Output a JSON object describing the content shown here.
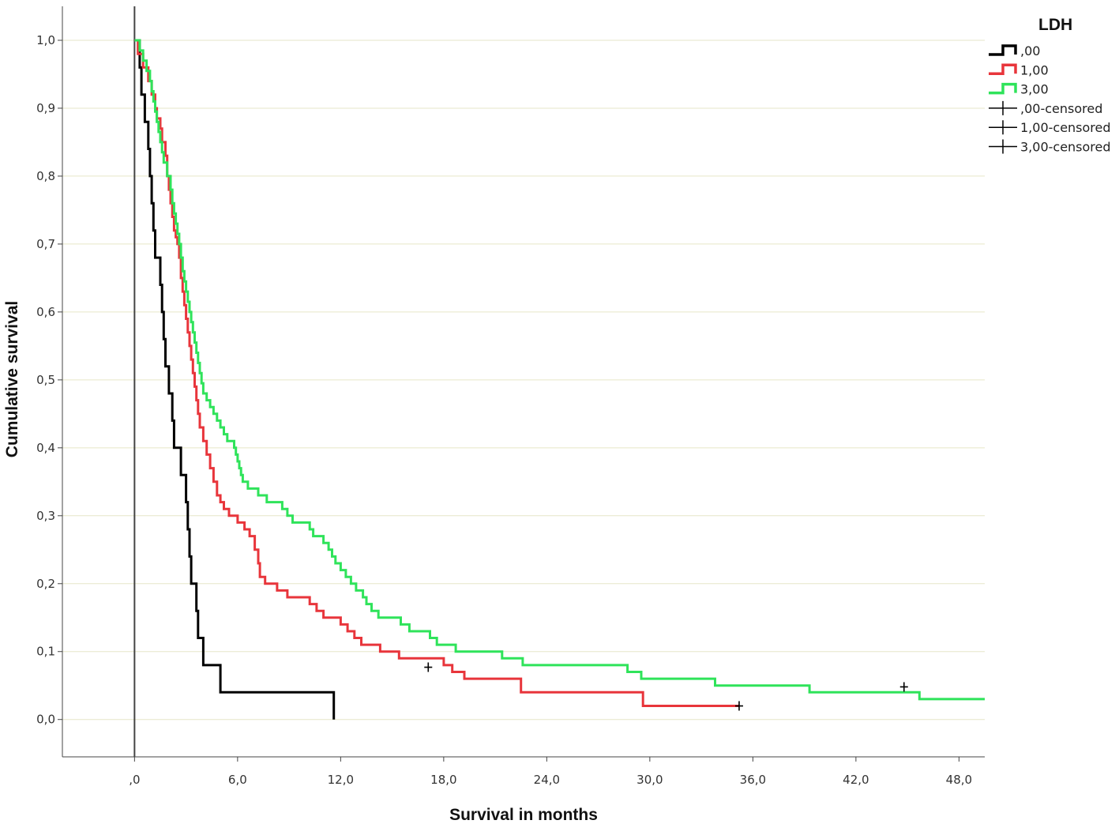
{
  "chart_data": {
    "type": "line",
    "xlabel": "Survival in months",
    "ylabel": "Cumulative survival",
    "xlim": [
      -4.2,
      49.5
    ],
    "ylim": [
      -0.055,
      1.05
    ],
    "xticks": [
      0,
      6,
      12,
      18,
      24,
      30,
      36,
      42,
      48
    ],
    "xtick_labels": [
      ",0",
      "6,0",
      "12,0",
      "18,0",
      "24,0",
      "30,0",
      "36,0",
      "42,0",
      "48,0"
    ],
    "yticks": [
      0,
      0.1,
      0.2,
      0.3,
      0.4,
      0.5,
      0.6,
      0.7,
      0.8,
      0.9,
      1.0
    ],
    "ytick_labels": [
      "0,0",
      "0,1",
      "0,2",
      "0,3",
      "0,4",
      "0,5",
      "0,6",
      "0,7",
      "0,8",
      "0,9",
      "1,0"
    ],
    "grid": "horizontal",
    "reference_line_x": 0,
    "legend": {
      "title": "LDH",
      "position": "top-right",
      "entries": [
        {
          "label": ",00",
          "kind": "line",
          "color": "#000000"
        },
        {
          "label": "1,00",
          "kind": "line",
          "color": "#e8353b"
        },
        {
          "label": "3,00",
          "kind": "line",
          "color": "#2fe35a"
        },
        {
          "label": ",00-censored",
          "kind": "censor-mark",
          "color": "#000000"
        },
        {
          "label": "1,00-censored",
          "kind": "censor-mark",
          "color": "#000000"
        },
        {
          "label": "3,00-censored",
          "kind": "censor-mark",
          "color": "#000000"
        }
      ]
    },
    "series": [
      {
        "name": ",00",
        "color": "#000000",
        "steps": [
          [
            0,
            1.0
          ],
          [
            0.3,
            0.96
          ],
          [
            0.4,
            0.92
          ],
          [
            0.6,
            0.88
          ],
          [
            0.8,
            0.84
          ],
          [
            0.9,
            0.8
          ],
          [
            1.0,
            0.76
          ],
          [
            1.1,
            0.72
          ],
          [
            1.2,
            0.68
          ],
          [
            1.5,
            0.64
          ],
          [
            1.6,
            0.6
          ],
          [
            1.7,
            0.56
          ],
          [
            1.8,
            0.52
          ],
          [
            2.0,
            0.48
          ],
          [
            2.2,
            0.44
          ],
          [
            2.3,
            0.4
          ],
          [
            2.7,
            0.36
          ],
          [
            3.0,
            0.32
          ],
          [
            3.1,
            0.28
          ],
          [
            3.2,
            0.24
          ],
          [
            3.3,
            0.2
          ],
          [
            3.6,
            0.16
          ],
          [
            3.7,
            0.12
          ],
          [
            4.0,
            0.08
          ],
          [
            5.0,
            0.04
          ],
          [
            11.6,
            0.0
          ]
        ],
        "end": 11.6,
        "censored": []
      },
      {
        "name": "1,00",
        "color": "#e8353b",
        "steps": [
          [
            0,
            1.0
          ],
          [
            0.2,
            0.98
          ],
          [
            0.5,
            0.96
          ],
          [
            0.8,
            0.94
          ],
          [
            1.0,
            0.92
          ],
          [
            1.2,
            0.9
          ],
          [
            1.3,
            0.885
          ],
          [
            1.5,
            0.87
          ],
          [
            1.6,
            0.85
          ],
          [
            1.8,
            0.83
          ],
          [
            1.9,
            0.8
          ],
          [
            2.0,
            0.78
          ],
          [
            2.1,
            0.76
          ],
          [
            2.2,
            0.74
          ],
          [
            2.3,
            0.72
          ],
          [
            2.4,
            0.71
          ],
          [
            2.5,
            0.7
          ],
          [
            2.6,
            0.68
          ],
          [
            2.7,
            0.65
          ],
          [
            2.8,
            0.63
          ],
          [
            2.9,
            0.61
          ],
          [
            3.0,
            0.59
          ],
          [
            3.1,
            0.57
          ],
          [
            3.2,
            0.55
          ],
          [
            3.3,
            0.53
          ],
          [
            3.4,
            0.51
          ],
          [
            3.5,
            0.49
          ],
          [
            3.6,
            0.47
          ],
          [
            3.7,
            0.45
          ],
          [
            3.8,
            0.43
          ],
          [
            4.0,
            0.41
          ],
          [
            4.2,
            0.39
          ],
          [
            4.4,
            0.37
          ],
          [
            4.6,
            0.35
          ],
          [
            4.8,
            0.33
          ],
          [
            5.0,
            0.32
          ],
          [
            5.2,
            0.31
          ],
          [
            5.5,
            0.3
          ],
          [
            6.0,
            0.29
          ],
          [
            6.4,
            0.28
          ],
          [
            6.7,
            0.27
          ],
          [
            7.0,
            0.25
          ],
          [
            7.2,
            0.23
          ],
          [
            7.3,
            0.21
          ],
          [
            7.6,
            0.2
          ],
          [
            8.3,
            0.19
          ],
          [
            8.9,
            0.18
          ],
          [
            10.2,
            0.17
          ],
          [
            10.6,
            0.16
          ],
          [
            11.0,
            0.15
          ],
          [
            12.0,
            0.14
          ],
          [
            12.4,
            0.13
          ],
          [
            12.8,
            0.12
          ],
          [
            13.2,
            0.11
          ],
          [
            14.3,
            0.1
          ],
          [
            15.4,
            0.09
          ],
          [
            18.0,
            0.08
          ],
          [
            18.5,
            0.07
          ],
          [
            19.2,
            0.06
          ],
          [
            22.5,
            0.04
          ],
          [
            29.6,
            0.02
          ]
        ],
        "end": 35.2,
        "censored": [
          [
            17.1,
            0.077
          ],
          [
            35.2,
            0.02
          ]
        ]
      },
      {
        "name": "3,00",
        "color": "#2fe35a",
        "steps": [
          [
            0,
            1.0
          ],
          [
            0.3,
            0.985
          ],
          [
            0.5,
            0.97
          ],
          [
            0.7,
            0.955
          ],
          [
            0.9,
            0.94
          ],
          [
            1.0,
            0.925
          ],
          [
            1.1,
            0.91
          ],
          [
            1.2,
            0.895
          ],
          [
            1.3,
            0.88
          ],
          [
            1.4,
            0.865
          ],
          [
            1.5,
            0.85
          ],
          [
            1.6,
            0.835
          ],
          [
            1.7,
            0.82
          ],
          [
            1.9,
            0.8
          ],
          [
            2.1,
            0.78
          ],
          [
            2.2,
            0.76
          ],
          [
            2.3,
            0.745
          ],
          [
            2.4,
            0.73
          ],
          [
            2.5,
            0.715
          ],
          [
            2.6,
            0.7
          ],
          [
            2.7,
            0.68
          ],
          [
            2.8,
            0.66
          ],
          [
            2.9,
            0.645
          ],
          [
            3.0,
            0.63
          ],
          [
            3.1,
            0.615
          ],
          [
            3.2,
            0.6
          ],
          [
            3.3,
            0.585
          ],
          [
            3.4,
            0.57
          ],
          [
            3.5,
            0.555
          ],
          [
            3.6,
            0.54
          ],
          [
            3.7,
            0.525
          ],
          [
            3.8,
            0.51
          ],
          [
            3.9,
            0.495
          ],
          [
            4.0,
            0.48
          ],
          [
            4.2,
            0.47
          ],
          [
            4.4,
            0.46
          ],
          [
            4.6,
            0.45
          ],
          [
            4.8,
            0.44
          ],
          [
            5.0,
            0.43
          ],
          [
            5.2,
            0.42
          ],
          [
            5.4,
            0.41
          ],
          [
            5.8,
            0.4
          ],
          [
            5.9,
            0.39
          ],
          [
            6.0,
            0.38
          ],
          [
            6.1,
            0.37
          ],
          [
            6.2,
            0.36
          ],
          [
            6.3,
            0.35
          ],
          [
            6.6,
            0.34
          ],
          [
            7.2,
            0.33
          ],
          [
            7.7,
            0.32
          ],
          [
            8.6,
            0.31
          ],
          [
            8.9,
            0.3
          ],
          [
            9.2,
            0.29
          ],
          [
            10.2,
            0.28
          ],
          [
            10.4,
            0.27
          ],
          [
            11.0,
            0.26
          ],
          [
            11.3,
            0.25
          ],
          [
            11.5,
            0.24
          ],
          [
            11.7,
            0.23
          ],
          [
            12.0,
            0.22
          ],
          [
            12.3,
            0.21
          ],
          [
            12.6,
            0.2
          ],
          [
            12.9,
            0.19
          ],
          [
            13.3,
            0.18
          ],
          [
            13.5,
            0.17
          ],
          [
            13.8,
            0.16
          ],
          [
            14.2,
            0.15
          ],
          [
            15.5,
            0.14
          ],
          [
            16.0,
            0.13
          ],
          [
            17.2,
            0.12
          ],
          [
            17.6,
            0.11
          ],
          [
            18.7,
            0.1
          ],
          [
            21.4,
            0.09
          ],
          [
            22.6,
            0.08
          ],
          [
            28.7,
            0.07
          ],
          [
            29.5,
            0.06
          ],
          [
            33.8,
            0.05
          ],
          [
            39.3,
            0.04
          ],
          [
            45.7,
            0.03
          ]
        ],
        "end": 49.5,
        "censored": [
          [
            44.8,
            0.048
          ]
        ]
      }
    ]
  }
}
